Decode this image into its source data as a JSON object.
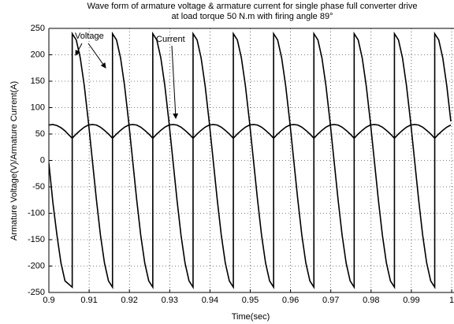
{
  "chart_data": {
    "type": "line",
    "title": [
      "Wave form of armature voltage & armature current for single phase full converter drive",
      "at load torque 50 N.m with firing angle 89°"
    ],
    "xlabel": "Time(sec)",
    "ylabel": "Armature Voltage(V)/Armature Current(A)",
    "xlim": [
      0.9,
      1
    ],
    "ylim": [
      -250,
      250
    ],
    "xticks": [
      0.9,
      0.91,
      0.92,
      0.93,
      0.94,
      0.95,
      0.96,
      0.97,
      0.98,
      0.99,
      1
    ],
    "yticks": [
      -250,
      -200,
      -150,
      -100,
      -50,
      0,
      50,
      100,
      150,
      200,
      250
    ],
    "grid": true,
    "annotations": [
      "Voltage",
      "Current"
    ],
    "series": [
      {
        "name": "Voltage",
        "color": "#000000",
        "x": [
          0.9,
          0.901,
          0.902,
          0.903,
          0.904,
          0.9058,
          0.9058,
          0.9068,
          0.9078,
          0.9088,
          0.9098,
          0.9108,
          0.9118,
          0.9128,
          0.9138,
          0.9148,
          0.9158,
          0.9158,
          0.9168,
          0.9178,
          0.9188,
          0.9198,
          0.9208,
          0.9218,
          0.9228,
          0.9238,
          0.9248,
          0.9258,
          0.9258,
          0.9268,
          0.9278,
          0.9288,
          0.9298,
          0.9308,
          0.9318,
          0.9328,
          0.9338,
          0.9348,
          0.9358,
          0.9358,
          0.9368,
          0.9378,
          0.9388,
          0.9398,
          0.9408,
          0.9418,
          0.9428,
          0.9438,
          0.9448,
          0.9458,
          0.9458,
          0.9468,
          0.9478,
          0.9488,
          0.9498,
          0.9508,
          0.9518,
          0.9528,
          0.9538,
          0.9548,
          0.9558,
          0.9558,
          0.9568,
          0.9578,
          0.9588,
          0.9598,
          0.9608,
          0.9618,
          0.9628,
          0.9638,
          0.9648,
          0.9658,
          0.9658,
          0.9668,
          0.9678,
          0.9688,
          0.9698,
          0.9708,
          0.9718,
          0.9728,
          0.9738,
          0.9748,
          0.9758,
          0.9758,
          0.9768,
          0.9778,
          0.9788,
          0.9798,
          0.9808,
          0.9818,
          0.9828,
          0.9838,
          0.9848,
          0.9858,
          0.9858,
          0.9868,
          0.9878,
          0.9888,
          0.9898,
          0.9908,
          0.9918,
          0.9928,
          0.9938,
          0.9948,
          0.9958,
          0.9958,
          0.9968,
          0.9978,
          0.9988,
          0.9998
        ],
        "values": [
          -5,
          -80,
          -141,
          -194,
          -228,
          -240,
          240,
          228,
          194,
          141,
          74,
          0,
          -74,
          -141,
          -194,
          -228,
          -240,
          240,
          228,
          194,
          141,
          74,
          0,
          -74,
          -141,
          -194,
          -228,
          -240,
          240,
          228,
          194,
          141,
          74,
          0,
          -74,
          -141,
          -194,
          -228,
          -240,
          240,
          228,
          194,
          141,
          74,
          0,
          -74,
          -141,
          -194,
          -228,
          -240,
          240,
          228,
          194,
          141,
          74,
          0,
          -74,
          -141,
          -194,
          -228,
          -240,
          240,
          228,
          194,
          141,
          74,
          0,
          -74,
          -141,
          -194,
          -228,
          -240,
          240,
          228,
          194,
          141,
          74,
          0,
          -74,
          -141,
          -194,
          -228,
          -240,
          240,
          228,
          194,
          141,
          74,
          0,
          -74,
          -141,
          -194,
          -228,
          -240,
          240,
          228,
          194,
          141,
          74,
          0,
          -74,
          -141,
          -194,
          -228,
          -240,
          240,
          228,
          194,
          141,
          74
        ]
      },
      {
        "name": "Current",
        "color": "#000000",
        "x": [
          0.9,
          0.901,
          0.902,
          0.903,
          0.904,
          0.905,
          0.9058,
          0.9068,
          0.9078,
          0.9088,
          0.9098,
          0.9108,
          0.9118,
          0.9128,
          0.9138,
          0.9148,
          0.9158,
          0.9168,
          0.9178,
          0.9188,
          0.9198,
          0.9208,
          0.9218,
          0.9228,
          0.9238,
          0.9248,
          0.9258,
          0.9268,
          0.9278,
          0.9288,
          0.9298,
          0.9308,
          0.9318,
          0.9328,
          0.9338,
          0.9348,
          0.9358,
          0.9368,
          0.9378,
          0.9388,
          0.9398,
          0.9408,
          0.9418,
          0.9428,
          0.9438,
          0.9448,
          0.9458,
          0.9468,
          0.9478,
          0.9488,
          0.9498,
          0.9508,
          0.9518,
          0.9528,
          0.9538,
          0.9548,
          0.9558,
          0.9568,
          0.9578,
          0.9588,
          0.9598,
          0.9608,
          0.9618,
          0.9628,
          0.9638,
          0.9648,
          0.9658,
          0.9668,
          0.9678,
          0.9688,
          0.9698,
          0.9708,
          0.9718,
          0.9728,
          0.9738,
          0.9748,
          0.9758,
          0.9768,
          0.9778,
          0.9788,
          0.9798,
          0.9808,
          0.9818,
          0.9828,
          0.9838,
          0.9848,
          0.9858,
          0.9868,
          0.9878,
          0.9888,
          0.9898,
          0.9908,
          0.9918,
          0.9928,
          0.9938,
          0.9948,
          0.9958,
          0.9968,
          0.9978,
          0.9988,
          0.9998
        ],
        "values": [
          67,
          68,
          66,
          62,
          56,
          48,
          42,
          50,
          57,
          63,
          67,
          68,
          67,
          63,
          57,
          50,
          42,
          50,
          57,
          63,
          67,
          68,
          67,
          63,
          57,
          50,
          42,
          50,
          57,
          63,
          67,
          68,
          67,
          63,
          57,
          50,
          42,
          50,
          57,
          63,
          67,
          68,
          67,
          63,
          57,
          50,
          42,
          50,
          57,
          63,
          67,
          68,
          67,
          63,
          57,
          50,
          42,
          50,
          57,
          63,
          67,
          68,
          67,
          63,
          57,
          50,
          42,
          50,
          57,
          63,
          67,
          68,
          67,
          63,
          57,
          50,
          42,
          50,
          57,
          63,
          67,
          68,
          67,
          63,
          57,
          50,
          42,
          50,
          57,
          63,
          67,
          68,
          67,
          63,
          57,
          50,
          42,
          50,
          57,
          63,
          67
        ]
      }
    ]
  }
}
